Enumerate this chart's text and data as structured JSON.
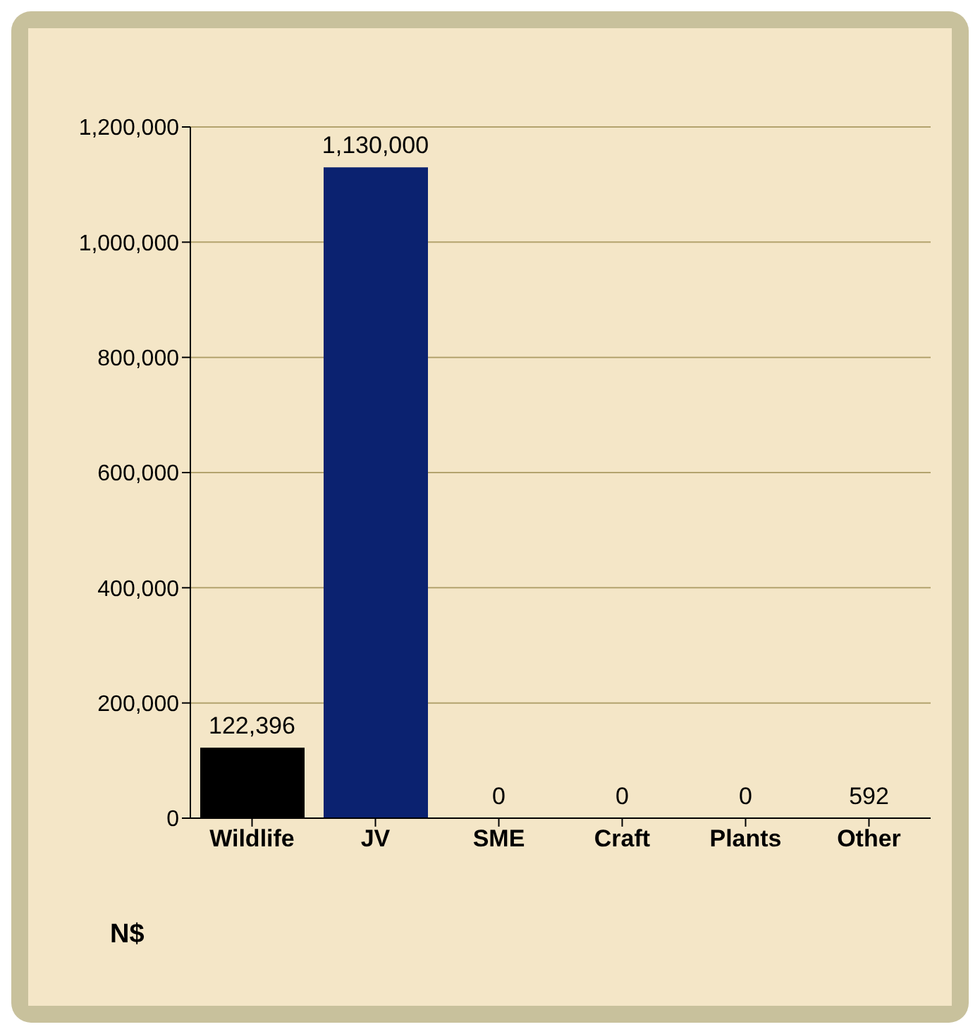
{
  "chart_data": {
    "type": "bar",
    "ylabel": "N$",
    "categories": [
      "Wildlife",
      "JV",
      "SME",
      "Craft",
      "Plants",
      "Other"
    ],
    "values": [
      122396,
      1130000,
      0,
      0,
      0,
      592
    ],
    "value_labels": [
      "122,396",
      "1,130,000",
      "0",
      "0",
      "0",
      "592"
    ],
    "colors": [
      "#000000",
      "#0b2270",
      "#7f7f7f",
      "#7f7f7f",
      "#7f7f7f",
      "#b8c08a"
    ],
    "ylim": [
      0,
      1200000
    ],
    "yticks": [
      {
        "value": 0,
        "label": "0"
      },
      {
        "value": 200000,
        "label": "200,000"
      },
      {
        "value": 400000,
        "label": "400,000"
      },
      {
        "value": 600000,
        "label": "600,000"
      },
      {
        "value": 800000,
        "label": "800,000"
      },
      {
        "value": 1000000,
        "label": "1,000,000"
      },
      {
        "value": 1200000,
        "label": "1,200,000"
      }
    ],
    "grid": "y"
  }
}
